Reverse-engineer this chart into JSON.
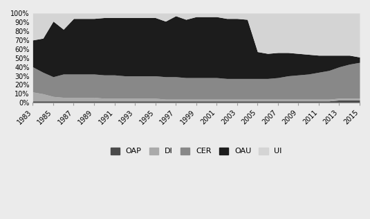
{
  "years": [
    1983,
    1984,
    1985,
    1986,
    1987,
    1988,
    1989,
    1990,
    1991,
    1992,
    1993,
    1994,
    1995,
    1996,
    1997,
    1998,
    1999,
    2000,
    2001,
    2002,
    2003,
    2004,
    2005,
    2006,
    2007,
    2008,
    2009,
    2010,
    2011,
    2012,
    2013,
    2014,
    2015
  ],
  "series": {
    "OAP": [
      2,
      2,
      2,
      2,
      2,
      2,
      2,
      2,
      2,
      2,
      2,
      2,
      2,
      2,
      2,
      2,
      2,
      2,
      2,
      2,
      2,
      2,
      2,
      2,
      2,
      2,
      2,
      2,
      2,
      2,
      3,
      3,
      3
    ],
    "DI": [
      10,
      8,
      5,
      4,
      4,
      4,
      4,
      3,
      3,
      3,
      3,
      3,
      3,
      2,
      2,
      2,
      2,
      2,
      2,
      2,
      2,
      2,
      2,
      2,
      2,
      2,
      2,
      2,
      2,
      2,
      2,
      2,
      2
    ],
    "CER": [
      28,
      24,
      22,
      26,
      26,
      26,
      26,
      26,
      26,
      25,
      25,
      25,
      25,
      25,
      25,
      24,
      24,
      24,
      24,
      23,
      23,
      23,
      23,
      23,
      24,
      26,
      27,
      28,
      30,
      32,
      35,
      38,
      40
    ],
    "OAU": [
      30,
      38,
      62,
      50,
      62,
      62,
      62,
      64,
      64,
      65,
      65,
      65,
      65,
      62,
      68,
      65,
      68,
      68,
      68,
      67,
      67,
      66,
      30,
      28,
      28,
      26,
      24,
      22,
      19,
      17,
      13,
      10,
      6
    ],
    "UI": [
      30,
      28,
      9,
      18,
      6,
      6,
      6,
      5,
      5,
      5,
      5,
      5,
      5,
      9,
      3,
      7,
      4,
      4,
      4,
      6,
      6,
      7,
      43,
      45,
      44,
      44,
      45,
      46,
      47,
      47,
      47,
      47,
      49
    ]
  },
  "colors": {
    "OAP": "#4a4a4a",
    "DI": "#aaaaaa",
    "CER": "#888888",
    "OAU": "#1c1c1c",
    "UI": "#d4d4d4"
  },
  "legend_labels": [
    "OAP",
    "DI",
    "CER",
    "OAU",
    "UI"
  ],
  "xtick_years": [
    1983,
    1985,
    1987,
    1989,
    1991,
    1993,
    1995,
    1997,
    1999,
    2001,
    2003,
    2005,
    2007,
    2009,
    2011,
    2013,
    2015
  ],
  "yticks": [
    0,
    10,
    20,
    30,
    40,
    50,
    60,
    70,
    80,
    90,
    100
  ],
  "background_color": "#ebebeb",
  "plot_background": "#ebebeb"
}
